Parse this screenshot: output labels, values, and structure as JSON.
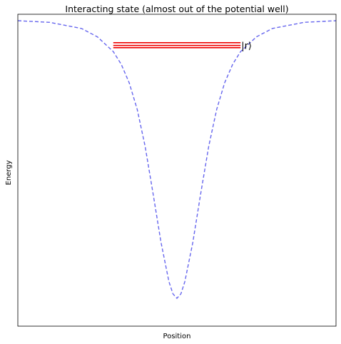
{
  "chart_data": {
    "type": "line",
    "title": "Interacting state (almost out of the potential well)",
    "xlabel": "Position",
    "ylabel": "Energy",
    "xticks": [],
    "yticks": [],
    "xlim": [
      -10,
      10
    ],
    "ylim": [
      -1.1,
      0.02
    ],
    "grid": false,
    "series": [
      {
        "style": "dashed",
        "color": "#6666ee",
        "x": [
          -10,
          -8,
          -6,
          -5,
          -4,
          -3.5,
          -3,
          -2.5,
          -2,
          -1.5,
          -1,
          -0.5,
          -0.25,
          0,
          0.25,
          0.5,
          1,
          1.5,
          2,
          2.5,
          3,
          3.5,
          4,
          5,
          6,
          8,
          10
        ],
        "y": [
          -0.003,
          -0.009,
          -0.031,
          -0.061,
          -0.114,
          -0.16,
          -0.226,
          -0.321,
          -0.454,
          -0.623,
          -0.799,
          -0.94,
          -0.984,
          -1.0,
          -0.984,
          -0.94,
          -0.799,
          -0.623,
          -0.454,
          -0.321,
          -0.226,
          -0.16,
          -0.114,
          -0.061,
          -0.031,
          -0.009,
          -0.003
        ]
      }
    ],
    "levels": {
      "color": "#ee0000",
      "x_range": [
        -4,
        4
      ],
      "y_values": [
        -0.082,
        -0.092,
        -0.1
      ]
    },
    "annotation": {
      "text": "|r⟩",
      "x": 4,
      "y": -0.092
    }
  }
}
